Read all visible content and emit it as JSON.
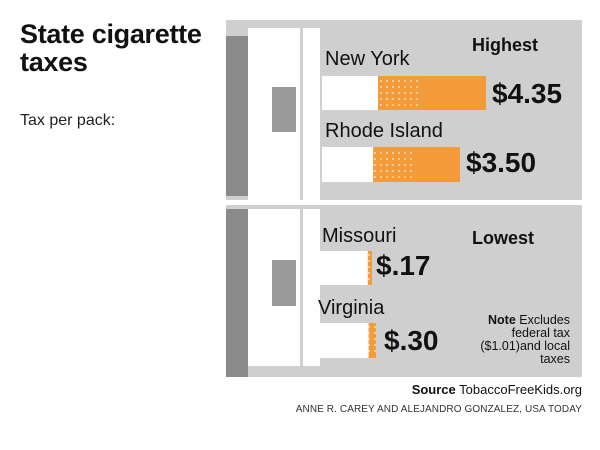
{
  "title": "State cigarette taxes",
  "subtitle": "Tax per pack:",
  "colors": {
    "ash": "#ffffff",
    "burning": "#f39a3a",
    "panel": "#cfcfcf"
  },
  "chart_data": {
    "type": "bar",
    "unit": "USD per pack",
    "xlim": [
      0,
      4.35
    ],
    "groups": [
      {
        "name": "Highest",
        "bars": [
          {
            "state": "New York",
            "value": 4.35,
            "label": "$4.35"
          },
          {
            "state": "Rhode Island",
            "value": 3.5,
            "label": "$3.50"
          }
        ]
      },
      {
        "name": "Lowest",
        "bars": [
          {
            "state": "Missouri",
            "value": 0.17,
            "label": "$.17"
          },
          {
            "state": "Virginia",
            "value": 0.3,
            "label": "$.30"
          }
        ]
      }
    ]
  },
  "note": {
    "label": "Note",
    "text": "Excludes federal tax ($1.01)and local taxes"
  },
  "source": {
    "label": "Source",
    "text": "TobaccoFreeKids.org"
  },
  "credit": "ANNE R. CAREY AND ALEJANDRO GONZALEZ, USA TODAY"
}
